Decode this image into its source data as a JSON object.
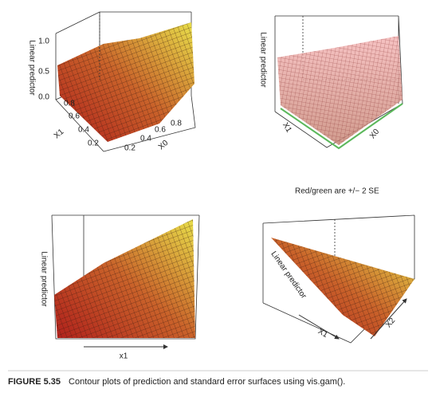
{
  "panels": [
    {
      "z_label": "Linear predictor",
      "z_ticks": [
        "1.0",
        "0.5",
        "0.0"
      ],
      "x1_label": "X1",
      "x1_ticks": [
        "0.8",
        "0.6",
        "0.4",
        "0.2"
      ],
      "x0_label": "X0",
      "x0_ticks": [
        "0.2",
        "0.4",
        "0.6",
        "0.8"
      ]
    },
    {
      "z_label": "Linear predictor",
      "x1_label": "X1",
      "x0_label": "X0",
      "note": "Red/green are +/− 2 SE"
    },
    {
      "z_label": "Linear predictor",
      "x_label": "x1"
    },
    {
      "z_label": "Linear predictor",
      "x1_label": "X1",
      "x2_label": "X2"
    }
  ],
  "caption": {
    "label": "FIGURE 5.35",
    "text": "Contour plots of prediction and standard error surfaces using vis.gam()."
  }
}
